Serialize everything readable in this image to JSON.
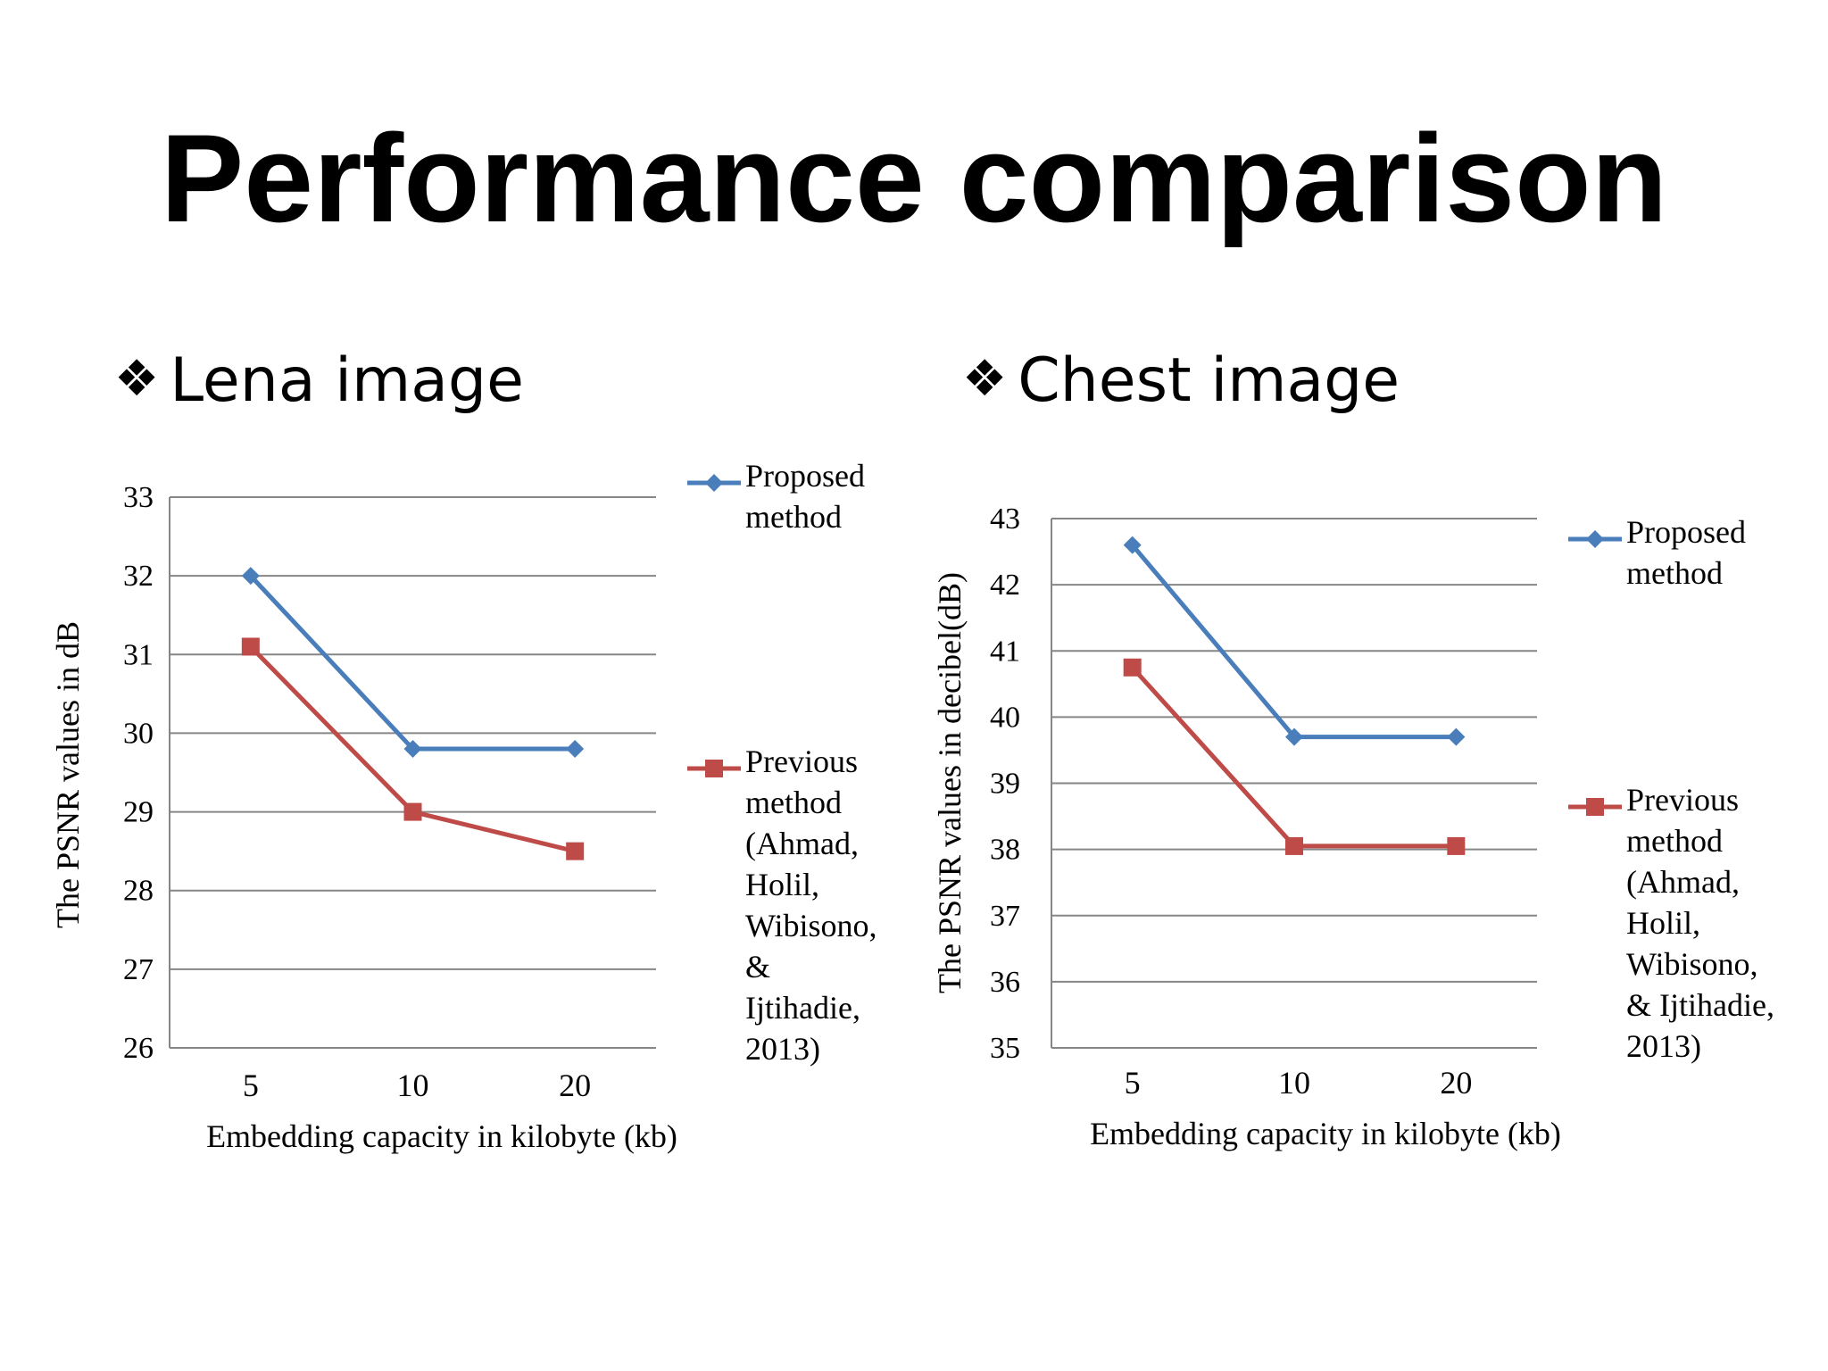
{
  "title": "Performance comparison",
  "bullet_glyph": "❖",
  "colors": {
    "proposed": "#4A7EBB",
    "previous": "#BE4B48",
    "grid": "#868686"
  },
  "chart_data": [
    {
      "type": "line",
      "heading": "Lena image",
      "categories": [
        "5",
        "10",
        "20"
      ],
      "ylim": [
        26,
        33
      ],
      "yticks": [
        "26",
        "27",
        "28",
        "29",
        "30",
        "31",
        "32",
        "33"
      ],
      "xlabel": "Embedding capacity in kilobyte (kb)",
      "ylabel": "The PSNR values in dB",
      "grid": true,
      "legend_position": "right",
      "series": [
        {
          "name": "Proposed method",
          "legend_lines": [
            "Proposed",
            "method"
          ],
          "marker": "diamond",
          "values": [
            32.0,
            29.8,
            29.8
          ]
        },
        {
          "name": "Previous method (Ahmad, Holil, Wibisono, & Ijtihadie, 2013)",
          "legend_lines": [
            "Previous",
            "method",
            "(Ahmad,",
            "Holil,",
            "Wibisono,",
            "&",
            "Ijtihadie,",
            "2013)"
          ],
          "marker": "square",
          "values": [
            31.1,
            29.0,
            28.5
          ]
        }
      ]
    },
    {
      "type": "line",
      "heading": "Chest image",
      "categories": [
        "5",
        "10",
        "20"
      ],
      "ylim": [
        35,
        43
      ],
      "yticks": [
        "35",
        "36",
        "37",
        "38",
        "39",
        "40",
        "41",
        "42",
        "43"
      ],
      "xlabel": "Embedding capacity in kilobyte (kb)",
      "ylabel": "The PSNR values in decibel(dB)",
      "grid": true,
      "legend_position": "right",
      "series": [
        {
          "name": "Proposed method",
          "legend_lines": [
            "Proposed",
            "method"
          ],
          "marker": "diamond",
          "values": [
            42.6,
            39.7,
            39.7
          ]
        },
        {
          "name": "Previous method (Ahmad, Holil, Wibisono, & Ijtihadie, 2013)",
          "legend_lines": [
            "Previous",
            "method",
            "(Ahmad,",
            "Holil,",
            "Wibisono,",
            "& Ijtihadie,",
            "2013)"
          ],
          "marker": "square",
          "values": [
            40.75,
            38.05,
            38.05
          ]
        }
      ]
    }
  ]
}
